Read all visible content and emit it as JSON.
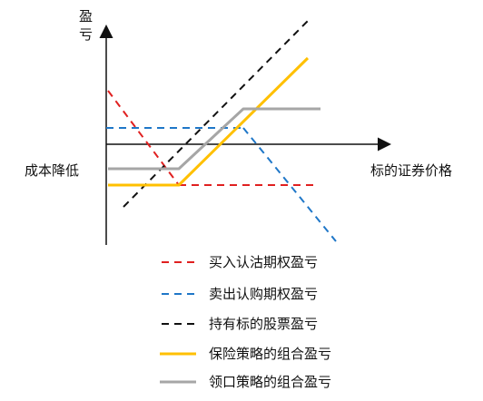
{
  "axes": {
    "y_label": "盈亏",
    "x_label": "标的证券价格",
    "left_note": "成本降低"
  },
  "legend": [
    {
      "id": "long_put",
      "label": "买入认沽期权盈亏",
      "color": "#e02020",
      "style": "dashed"
    },
    {
      "id": "short_call",
      "label": "卖出认购期权盈亏",
      "color": "#1f77c8",
      "style": "dashed"
    },
    {
      "id": "stock",
      "label": "持有标的股票盈亏",
      "color": "#111111",
      "style": "dashed"
    },
    {
      "id": "protective",
      "label": "保险策略的组合盈亏",
      "color": "#ffc000",
      "style": "solid"
    },
    {
      "id": "collar",
      "label": "领口策略的组合盈亏",
      "color": "#a6a6a6",
      "style": "solid"
    }
  ]
}
